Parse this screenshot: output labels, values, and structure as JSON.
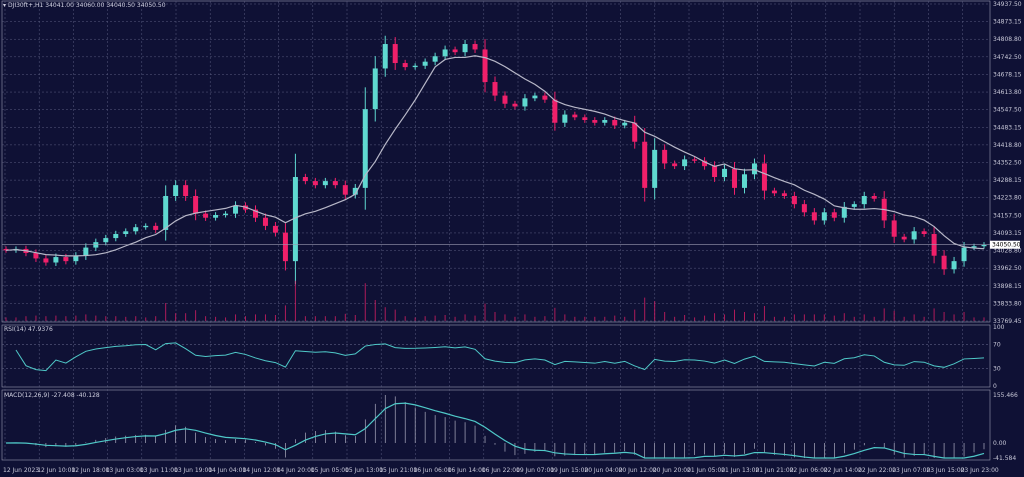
{
  "header": {
    "symbol": "DJI30ft+,H1",
    "ohlc": "34041.00 34060.00 34040.50 34050.50"
  },
  "current_price_label": "34050.50",
  "colors": {
    "background": "#0f1135",
    "bull": "#5fd9d0",
    "bear": "#f0206a",
    "ma": "#b8b8c8",
    "grid": "#5a5d80",
    "indicator_line": "#4fc9c8"
  },
  "rsi": {
    "label": "RSI(14) 47.9376",
    "levels": [
      "100",
      "70",
      "30",
      "0"
    ]
  },
  "macd": {
    "label": "MACD(12,26,9) -27.408 -40.128",
    "levels": [
      "155.466",
      "0.00",
      "-41.584"
    ]
  },
  "chart_data": {
    "type": "candlestick",
    "title": "DJI30ft+,H1",
    "grid": true,
    "ylim": [
      33769.45,
      34937.5
    ],
    "y_ticks": [
      "34937.50",
      "34873.15",
      "34808.80",
      "34742.50",
      "34678.15",
      "34613.80",
      "34547.50",
      "34483.15",
      "34418.80",
      "34352.50",
      "34288.15",
      "34223.80",
      "34157.50",
      "34093.15",
      "34028.80",
      "33962.50",
      "33898.15",
      "33833.80",
      "33769.45"
    ],
    "x_ticks": [
      "12 Jun 2023",
      "12 Jun 10:00",
      "12 Jun 18:00",
      "13 Jun 03:00",
      "13 Jun 11:00",
      "13 Jun 19:00",
      "14 Jun 04:00",
      "14 Jun 12:00",
      "14 Jun 20:00",
      "15 Jun 05:00",
      "15 Jun 13:00",
      "15 Jun 21:00",
      "16 Jun 06:00",
      "16 Jun 14:00",
      "16 Jun 22:00",
      "19 Jun 07:00",
      "19 Jun 15:00",
      "20 Jun 04:00",
      "20 Jun 12:00",
      "20 Jun 20:00",
      "21 Jun 05:00",
      "21 Jun 13:00",
      "21 Jun 21:00",
      "22 Jun 06:00",
      "22 Jun 14:00",
      "22 Jun 22:00",
      "23 Jun 07:00",
      "23 Jun 15:00",
      "23 Jun 23:00"
    ],
    "close": [
      34030,
      34035,
      34020,
      34000,
      33985,
      34005,
      33990,
      34010,
      34040,
      34060,
      34075,
      34090,
      34100,
      34115,
      34120,
      34105,
      34230,
      34270,
      34230,
      34165,
      34150,
      34160,
      34165,
      34195,
      34180,
      34150,
      34120,
      34095,
      33990,
      34300,
      34285,
      34270,
      34285,
      34270,
      34235,
      34260,
      34550,
      34700,
      34790,
      34720,
      34705,
      34710,
      34725,
      34745,
      34770,
      34760,
      34790,
      34770,
      34650,
      34600,
      34570,
      34560,
      34590,
      34600,
      34585,
      34500,
      34530,
      34520,
      34510,
      34500,
      34510,
      34490,
      34500,
      34430,
      34260,
      34400,
      34350,
      34340,
      34365,
      34360,
      34340,
      34300,
      34330,
      34260,
      34310,
      34350,
      34250,
      34240,
      34230,
      34200,
      34170,
      34140,
      34170,
      34150,
      34190,
      34200,
      34230,
      34220,
      34140,
      34080,
      34070,
      34100,
      34090,
      34010,
      33960,
      33990,
      34040,
      34045,
      34050.5
    ]
  }
}
